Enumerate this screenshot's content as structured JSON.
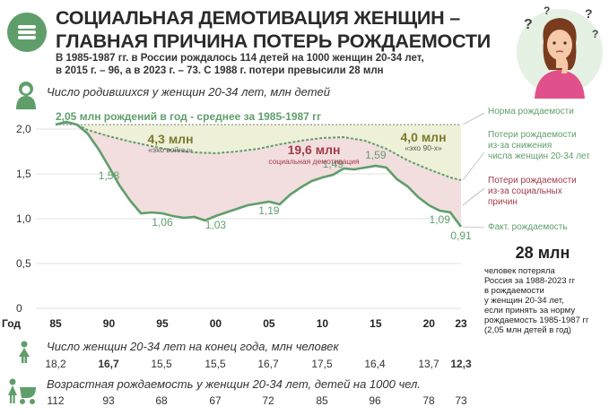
{
  "header": {
    "title_line1": "СОЦИАЛЬНАЯ ДЕМОТИВАЦИЯ ЖЕНЩИН –",
    "title_line2": "ГЛАВНАЯ ПРИЧИНА ПОТЕРЬ РОЖДАЕМОСТИ",
    "lead_line1": "В 1985-1987 гг. в России рождалось 114 детей на 1000 женщин 20-34 лет,",
    "lead_line2": "в 2015 г. – 96, а в 2023 г. – 73. С 1988 г. потери превысили 28 млн"
  },
  "chart_data": {
    "type": "line",
    "title": "Число родившихся у женщин 20-34 лет, млн детей",
    "ylim": [
      0,
      2.0
    ],
    "yticks": [
      "0",
      "0,5",
      "1,0",
      "1,5",
      "2,0"
    ],
    "xticks": [
      "85",
      "90",
      "95",
      "00",
      "05",
      "10",
      "15",
      "20",
      "23"
    ],
    "xlabel": "Год",
    "series": [
      {
        "name": "Норма рождаемости",
        "points": [
          [
            1985,
            2.05
          ],
          [
            2023,
            2.05
          ]
        ]
      },
      {
        "name": "Потери рождаемости из-за снижения числа женщин 20-34 лет",
        "points": [
          [
            1985,
            2.05
          ],
          [
            1986,
            2.07
          ],
          [
            1987,
            2.05
          ],
          [
            1988,
            1.99
          ],
          [
            1990,
            1.92
          ],
          [
            1992,
            1.86
          ],
          [
            1994,
            1.81
          ],
          [
            1996,
            1.76
          ],
          [
            1998,
            1.74
          ],
          [
            2000,
            1.73
          ],
          [
            2002,
            1.75
          ],
          [
            2004,
            1.78
          ],
          [
            2006,
            1.83
          ],
          [
            2008,
            1.87
          ],
          [
            2010,
            1.9
          ],
          [
            2012,
            1.91
          ],
          [
            2014,
            1.87
          ],
          [
            2016,
            1.78
          ],
          [
            2018,
            1.65
          ],
          [
            2020,
            1.55
          ],
          [
            2022,
            1.46
          ],
          [
            2023,
            1.43
          ]
        ]
      },
      {
        "name": "Факт. рождаемость",
        "points": [
          [
            1985,
            2.05
          ],
          [
            1986,
            2.08
          ],
          [
            1987,
            2.05
          ],
          [
            1988,
            1.95
          ],
          [
            1989,
            1.78
          ],
          [
            1990,
            1.58
          ],
          [
            1991,
            1.37
          ],
          [
            1992,
            1.2
          ],
          [
            1993,
            1.06
          ],
          [
            1994,
            1.07
          ],
          [
            1995,
            1.06
          ],
          [
            1996,
            1.03
          ],
          [
            1997,
            1.01
          ],
          [
            1998,
            1.02
          ],
          [
            1999,
            0.98
          ],
          [
            2000,
            1.03
          ],
          [
            2001,
            1.07
          ],
          [
            2002,
            1.11
          ],
          [
            2003,
            1.15
          ],
          [
            2004,
            1.17
          ],
          [
            2005,
            1.19
          ],
          [
            2006,
            1.16
          ],
          [
            2007,
            1.27
          ],
          [
            2008,
            1.35
          ],
          [
            2009,
            1.42
          ],
          [
            2010,
            1.46
          ],
          [
            2011,
            1.49
          ],
          [
            2012,
            1.56
          ],
          [
            2013,
            1.55
          ],
          [
            2014,
            1.57
          ],
          [
            2015,
            1.59
          ],
          [
            2016,
            1.57
          ],
          [
            2017,
            1.44
          ],
          [
            2018,
            1.36
          ],
          [
            2019,
            1.24
          ],
          [
            2020,
            1.15
          ],
          [
            2021,
            1.09
          ],
          [
            2022,
            1.07
          ],
          [
            2023,
            0.91
          ]
        ]
      }
    ],
    "data_labels": [
      {
        "x": 1990,
        "y": 1.58,
        "text": "1,58"
      },
      {
        "x": 1995,
        "y": 1.06,
        "text": "1,06"
      },
      {
        "x": 2000,
        "y": 1.03,
        "text": "1,03"
      },
      {
        "x": 2005,
        "y": 1.19,
        "text": "1,19"
      },
      {
        "x": 2011,
        "y": 1.49,
        "text": "1,49"
      },
      {
        "x": 2015,
        "y": 1.59,
        "text": "1,59"
      },
      {
        "x": 2021,
        "y": 1.09,
        "text": "1,09"
      },
      {
        "x": 2023,
        "y": 0.91,
        "text": "0,91"
      }
    ],
    "annotations": {
      "norm_line": "2,05 млн рождений в год - среднее за 1985-1987 гг",
      "echo_war_value": "4,3 млн",
      "echo_war_label": "«эхо войны»",
      "echo_90_value": "4,0 млн",
      "echo_90_label": "«эхо 90-х»",
      "social_value": "19,6 млн",
      "social_label": "социальная демотивация"
    },
    "colors": {
      "green": "#5f9e6b",
      "echo_fill": "#eef0d8",
      "social_fill": "#f2dede",
      "dark_red": "#a23a4a"
    }
  },
  "legend_right": {
    "norm": "Норма рождаемости",
    "loss_women": [
      "Потери рождаемости",
      "из-за снижения",
      "числа женщин 20-34 лет"
    ],
    "loss_social": [
      "Потери рождаемости",
      "из-за социальных",
      "причин"
    ],
    "actual": "Факт. рождаемость"
  },
  "total_note": {
    "value": "28 млн",
    "text": [
      "человек потеряла",
      "Россия за 1988-2023 гг",
      "в рождаемости",
      "у женщин 20-34 лет,",
      "если принять за норму",
      "рождаемость 1985-1987 гг",
      "(2,05 млн детей в год)"
    ]
  },
  "women_row": {
    "label": "Число женщин 20-34 лет на конец года, млн человек",
    "values": [
      "18,2",
      "16,7",
      "15,5",
      "15,5",
      "16,7",
      "17,5",
      "16,4",
      "13,7",
      "12,3"
    ],
    "icon": "woman-icon"
  },
  "fertility_row": {
    "label": "Возрастная рождаемость у женщин 20-34 лет, детей на 1000 чел.",
    "values": [
      "112",
      "93",
      "68",
      "67",
      "72",
      "85",
      "96",
      "78",
      "73"
    ],
    "icon": "mother-stroller-icon"
  },
  "chart_icon": "baby-icon",
  "illustration": "thinking-woman-illustration"
}
